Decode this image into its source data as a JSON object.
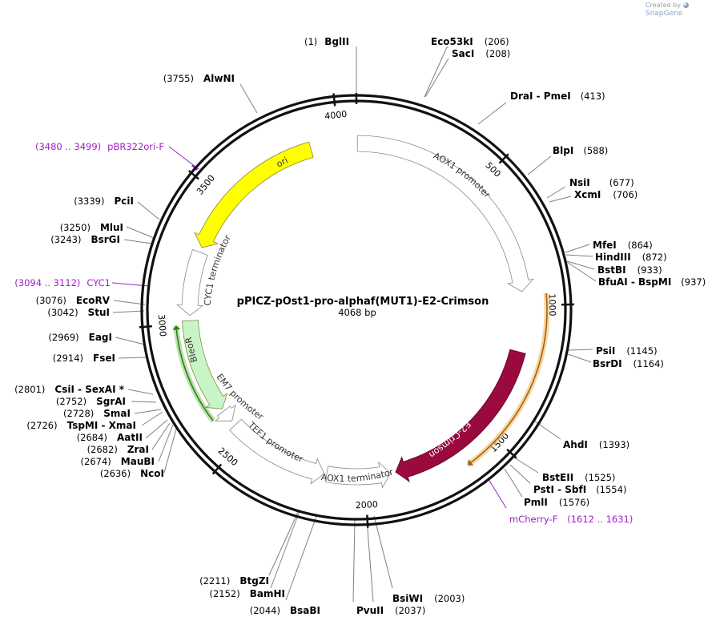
{
  "credit": {
    "prefix": "Created by",
    "brand": "SnapGene"
  },
  "plasmid": {
    "name": "pPICZ-pOst1-pro-alphaf(MUT1)-E2-Crimson",
    "size_label": "4068 bp",
    "length": 4068
  },
  "ticks": [
    "500",
    "1000",
    "1500",
    "2000",
    "2500",
    "3000",
    "3500",
    "4000"
  ],
  "sites": [
    {
      "name": "BglII",
      "pos": "(1)"
    },
    {
      "name": "Eco53kI",
      "pos": "(206)"
    },
    {
      "name": "SacI",
      "pos": "(208)"
    },
    {
      "name": "DraI  - PmeI",
      "pos": "(413)"
    },
    {
      "name": "BlpI",
      "pos": "(588)"
    },
    {
      "name": "NsiI",
      "pos": "(677)"
    },
    {
      "name": "XcmI",
      "pos": "(706)"
    },
    {
      "name": "MfeI",
      "pos": "(864)"
    },
    {
      "name": "HindIII",
      "pos": "(872)"
    },
    {
      "name": "BstBI",
      "pos": "(933)"
    },
    {
      "name": "BfuAI  - BspMI",
      "pos": "(937)"
    },
    {
      "name": "PsiI",
      "pos": "(1145)"
    },
    {
      "name": "BsrDI",
      "pos": "(1164)"
    },
    {
      "name": "AhdI",
      "pos": "(1393)"
    },
    {
      "name": "BstEII",
      "pos": "(1525)"
    },
    {
      "name": "PstI  - SbfI",
      "pos": "(1554)"
    },
    {
      "name": "PmlI",
      "pos": "(1576)"
    },
    {
      "name": "BsiWI",
      "pos": "(2003)"
    },
    {
      "name": "PvuII",
      "pos": "(2037)"
    },
    {
      "name": "BsaBI",
      "pos": "(2044)"
    },
    {
      "name": "BamHI",
      "pos": "(2152)"
    },
    {
      "name": "BtgZI",
      "pos": "(2211)"
    },
    {
      "name": "NcoI",
      "pos": "(2636)"
    },
    {
      "name": "MauBI",
      "pos": "(2674)"
    },
    {
      "name": "ZraI",
      "pos": "(2682)"
    },
    {
      "name": "AatII",
      "pos": "(2684)"
    },
    {
      "name": "TspMI  - XmaI",
      "pos": "(2726)"
    },
    {
      "name": "SmaI",
      "pos": "(2728)"
    },
    {
      "name": "SgrAI",
      "pos": "(2752)"
    },
    {
      "name": "CsiI  - SexAI *",
      "pos": "(2801)"
    },
    {
      "name": "FseI",
      "pos": "(2914)"
    },
    {
      "name": "EagI",
      "pos": "(2969)"
    },
    {
      "name": "StuI",
      "pos": "(3042)"
    },
    {
      "name": "EcoRV",
      "pos": "(3076)"
    },
    {
      "name": "BsrGI",
      "pos": "(3243)"
    },
    {
      "name": "MluI",
      "pos": "(3250)"
    },
    {
      "name": "PciI",
      "pos": "(3339)"
    },
    {
      "name": "AlwNI",
      "pos": "(3755)"
    }
  ],
  "primers": [
    {
      "name": "pBR322ori-F",
      "range": "(3480 .. 3499)"
    },
    {
      "name": "CYC1",
      "range": "(3094 .. 3112)"
    },
    {
      "name": "mCherry-F",
      "range": "(1612 .. 1631)"
    }
  ],
  "features": [
    {
      "name": "AOX1 promoter",
      "start": 4,
      "end": 945,
      "color": "#ffffff"
    },
    {
      "name": "E2-Crimson",
      "start": 1180,
      "end": 1880,
      "color": "#9b0a3e"
    },
    {
      "name": "AOX1 terminator",
      "start": 1900,
      "end": 2150,
      "color": "#ffffff"
    },
    {
      "name": "TEF1 promoter",
      "start": 2160,
      "end": 2560,
      "color": "#ffffff"
    },
    {
      "name": "EM7 promoter",
      "start": 2580,
      "end": 2630,
      "color": "#ffffff"
    },
    {
      "name": "BleoR",
      "start": 2640,
      "end": 3010,
      "color": "#c8f5c8"
    },
    {
      "name": "CYC1 terminator",
      "start": 3030,
      "end": 3280,
      "color": "#ffffff"
    },
    {
      "name": "ori",
      "start": 3300,
      "end": 3890,
      "color": "#ffff00"
    }
  ],
  "orf_arcs": [
    {
      "start": 960,
      "end": 1630,
      "color": "#f5c878"
    },
    {
      "start": 2625,
      "end": 2995,
      "color": "#9ed68a"
    }
  ]
}
